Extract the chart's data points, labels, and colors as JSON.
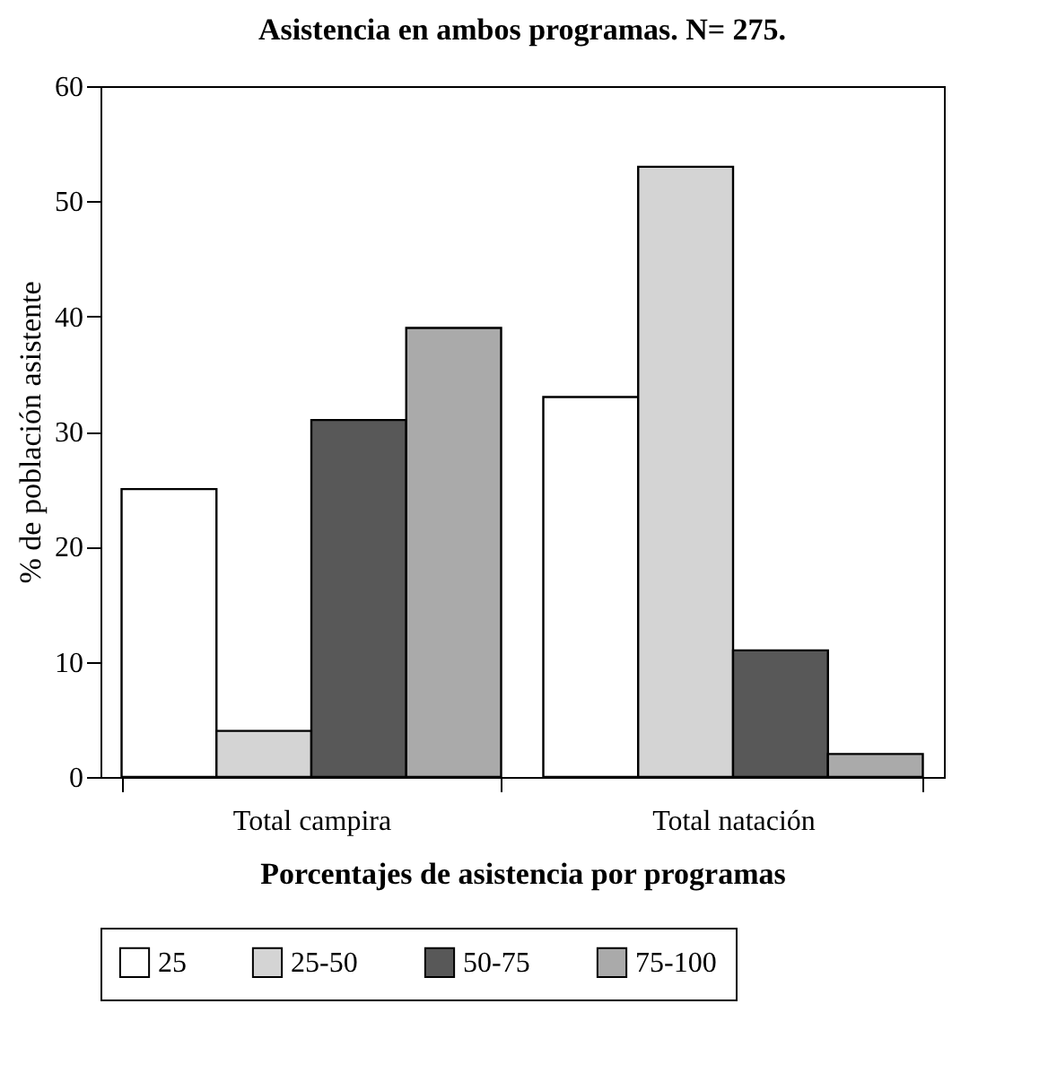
{
  "chart_data": {
    "type": "bar",
    "title": "Asistencia en ambos programas. N= 275.",
    "xlabel": "Porcentajes de asistencia por programas",
    "ylabel": "% de población asistente",
    "categories": [
      "Total campira",
      "Total natación"
    ],
    "series": [
      {
        "name": "25",
        "color": "#ffffff",
        "values": [
          25,
          33
        ]
      },
      {
        "name": "25-50",
        "color": "#d4d4d4",
        "values": [
          4,
          53
        ]
      },
      {
        "name": "50-75",
        "color": "#585858",
        "values": [
          31,
          11
        ]
      },
      {
        "name": "75-100",
        "color": "#aaaaaa",
        "values": [
          39,
          2
        ]
      }
    ],
    "ylim": [
      0,
      60
    ],
    "yticks": [
      0,
      10,
      20,
      30,
      40,
      50,
      60
    ],
    "grid": false,
    "legend": "bottom"
  }
}
